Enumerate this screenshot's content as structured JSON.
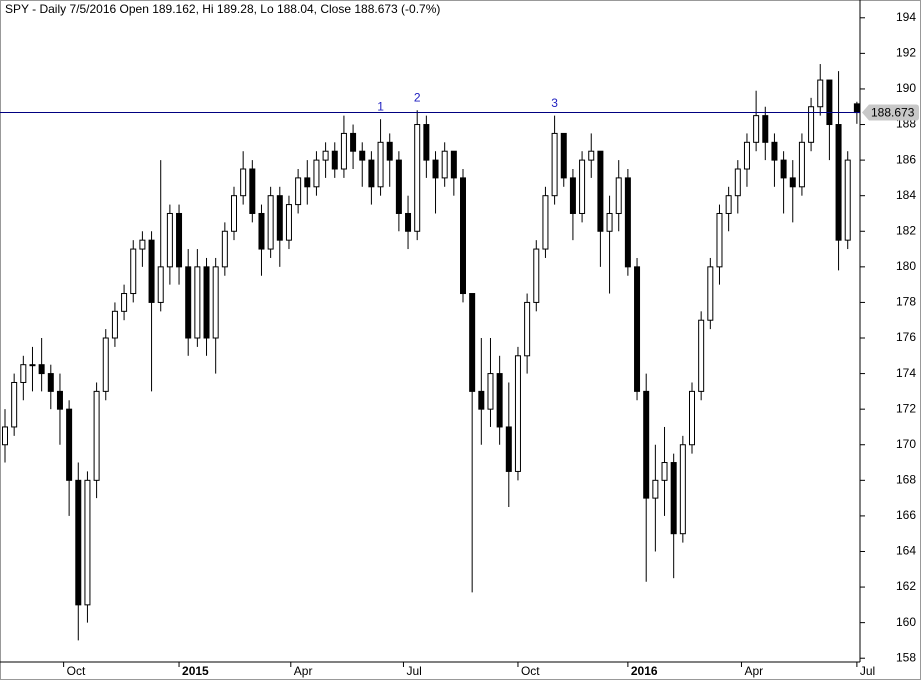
{
  "chart_data": {
    "type": "candlestick",
    "title": "SPY - Daily 7/5/2016 Open 189.162, Hi 189.28, Lo 188.04, Close 188.673 (-0.7%)",
    "ohlc": [
      [
        170,
        172,
        169,
        171
      ],
      [
        171,
        174,
        170.5,
        173.5
      ],
      [
        173.5,
        175,
        172.5,
        174.5
      ],
      [
        174.5,
        175.5,
        173,
        174.5
      ],
      [
        174.5,
        176,
        173,
        174
      ],
      [
        174,
        174.5,
        172,
        173
      ],
      [
        173,
        174,
        170,
        172
      ],
      [
        172,
        172.5,
        166,
        168
      ],
      [
        168,
        169,
        159,
        161
      ],
      [
        161,
        168.5,
        160,
        168
      ],
      [
        168,
        173.5,
        167,
        173
      ],
      [
        173,
        176.5,
        172.5,
        176
      ],
      [
        176,
        178,
        175.5,
        177.5
      ],
      [
        177.5,
        179,
        177,
        178.5
      ],
      [
        178.5,
        181.5,
        178,
        181
      ],
      [
        181,
        182,
        180,
        181.5
      ],
      [
        181.5,
        182,
        173,
        178
      ],
      [
        178,
        186,
        177.5,
        180
      ],
      [
        180,
        183.5,
        179,
        183
      ],
      [
        183,
        183.5,
        179,
        180
      ],
      [
        180,
        181,
        175,
        176
      ],
      [
        176,
        181,
        175.5,
        180
      ],
      [
        180,
        180.5,
        175,
        176
      ],
      [
        176,
        180.5,
        174,
        180
      ],
      [
        180,
        182.5,
        179.5,
        182
      ],
      [
        182,
        184.5,
        181.5,
        184
      ],
      [
        184,
        186.5,
        183.5,
        185.5
      ],
      [
        185.5,
        186,
        182.5,
        183
      ],
      [
        183,
        183.5,
        179.5,
        181
      ],
      [
        181,
        184.5,
        180.5,
        184
      ],
      [
        184,
        184.5,
        180,
        181.5
      ],
      [
        181.5,
        184,
        181,
        183.5
      ],
      [
        183.5,
        185.5,
        183,
        185
      ],
      [
        185,
        186,
        183.5,
        184.5
      ],
      [
        184.5,
        186.5,
        184,
        186
      ],
      [
        186,
        187,
        185,
        186.5
      ],
      [
        186.5,
        187,
        185,
        185.5
      ],
      [
        185.5,
        188.5,
        185,
        187.5
      ],
      [
        187.5,
        188,
        185.5,
        186.5
      ],
      [
        186.5,
        187,
        184.5,
        186
      ],
      [
        186,
        186.5,
        183.5,
        184.5
      ],
      [
        184.5,
        188.3,
        184,
        187
      ],
      [
        187,
        187.5,
        184.5,
        186
      ],
      [
        186,
        186.5,
        182,
        183
      ],
      [
        183,
        184,
        181,
        182
      ],
      [
        182,
        188.8,
        181.5,
        188
      ],
      [
        188,
        188.5,
        185,
        186
      ],
      [
        186,
        186.5,
        183,
        185
      ],
      [
        185,
        187,
        184.5,
        186.5
      ],
      [
        186.5,
        186.5,
        184,
        185
      ],
      [
        185,
        185.5,
        178,
        178.5
      ],
      [
        178.5,
        178.5,
        161.7,
        173
      ],
      [
        173,
        176,
        170,
        172
      ],
      [
        172,
        176,
        171,
        174
      ],
      [
        174,
        175,
        170,
        171
      ],
      [
        171,
        173.5,
        166.5,
        168.5
      ],
      [
        168.5,
        175.5,
        168,
        175
      ],
      [
        175,
        178.5,
        174,
        178
      ],
      [
        178,
        181.5,
        177.5,
        181
      ],
      [
        181,
        184.5,
        180.5,
        184
      ],
      [
        184,
        188.5,
        183.5,
        187.5
      ],
      [
        187.5,
        187.5,
        184.5,
        185
      ],
      [
        185,
        185.5,
        181.5,
        183
      ],
      [
        183,
        186.5,
        182.5,
        186
      ],
      [
        186,
        187.5,
        185,
        186.5
      ],
      [
        186.5,
        186.5,
        180,
        182
      ],
      [
        182,
        184,
        178.5,
        183
      ],
      [
        183,
        186,
        182,
        185
      ],
      [
        185,
        185.5,
        179.5,
        180
      ],
      [
        180,
        180.5,
        172.5,
        173
      ],
      [
        173,
        174,
        162.3,
        167
      ],
      [
        167,
        170,
        164,
        168
      ],
      [
        168,
        171,
        166,
        169
      ],
      [
        169,
        169.5,
        162.5,
        165
      ],
      [
        165,
        170.5,
        164.5,
        170
      ],
      [
        170,
        173.5,
        169.5,
        173
      ],
      [
        173,
        177.5,
        172.5,
        177
      ],
      [
        177,
        180.5,
        176.5,
        180
      ],
      [
        180,
        183.5,
        179,
        183
      ],
      [
        183,
        184.5,
        182,
        184
      ],
      [
        184,
        186,
        183,
        185.5
      ],
      [
        185.5,
        187.5,
        184.5,
        187
      ],
      [
        187,
        189.9,
        186.5,
        188.5
      ],
      [
        188.5,
        189,
        186,
        187
      ],
      [
        187,
        187.5,
        184.5,
        186
      ],
      [
        186,
        186.5,
        183,
        185
      ],
      [
        185,
        186,
        182.5,
        184.5
      ],
      [
        184.5,
        187.5,
        184,
        187
      ],
      [
        187,
        189.5,
        186.5,
        189
      ],
      [
        189,
        191.4,
        188.5,
        190.5
      ],
      [
        190.5,
        190.5,
        186,
        188
      ],
      [
        188,
        191,
        179.8,
        181.5
      ],
      [
        181.5,
        186.5,
        181,
        186
      ],
      [
        189.162,
        189.28,
        188.04,
        188.673
      ]
    ],
    "xticks": [
      {
        "value": 6.4,
        "label": "Oct"
      },
      {
        "value": 19,
        "label": "2015"
      },
      {
        "value": 31.2,
        "label": "Apr"
      },
      {
        "value": 43.5,
        "label": "Jul"
      },
      {
        "value": 56,
        "label": "Oct"
      },
      {
        "value": 68,
        "label": "2016"
      },
      {
        "value": 80.4,
        "label": "Apr"
      },
      {
        "value": 93,
        "label": "Jul"
      }
    ],
    "ylim": [
      157.9,
      195.0
    ],
    "yticks": [
      158,
      160,
      162,
      164,
      166,
      168,
      170,
      172,
      174,
      176,
      178,
      180,
      182,
      184,
      186,
      188,
      190,
      192,
      194
    ],
    "hline": 188.673,
    "hline_color": "#000080",
    "annotations": [
      {
        "text": "1",
        "at": 41
      },
      {
        "text": "2",
        "at": 45
      },
      {
        "text": "3",
        "at": 60
      }
    ],
    "up_color": "#ffffff",
    "down_color": "#000000"
  }
}
